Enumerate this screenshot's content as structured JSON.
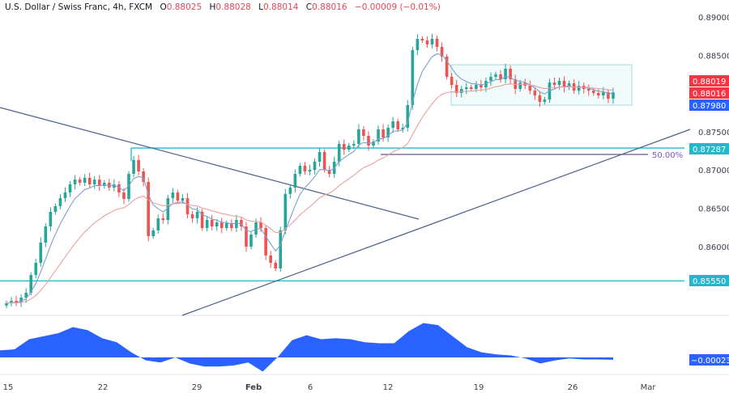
{
  "header": {
    "symbol": "U.S. Dollar / Swiss Franc, 4h, FXCM",
    "open_label": "O",
    "open": "0.88025",
    "high_label": "H",
    "high": "0.88028",
    "low_label": "L",
    "low": "0.88014",
    "close_label": "C",
    "close": "0.88016",
    "change": "−0.00009 (−0.01%)"
  },
  "colors": {
    "up": "#26a69a",
    "down": "#ef5350",
    "ma_fast": "#7e9fd0",
    "ma_slow": "#e8a0a0",
    "oscillator": "#2962ff",
    "level": "#26b6c9",
    "trendline": "#4a5f8a",
    "fib": "#7e57c2"
  },
  "price_tags": [
    {
      "value": "0.88019",
      "color": "#f23645"
    },
    {
      "value": "0.88016",
      "color": "#f23645"
    },
    {
      "value": "0.87980",
      "color": "#2962ff"
    },
    {
      "value": "0.87287",
      "color": "#26b6c9"
    },
    {
      "value": "0.85550",
      "color": "#26b6c9"
    }
  ],
  "oscillator_tag": {
    "value": "−0.00023",
    "color": "#2962ff"
  },
  "fib_label": "50.00%",
  "chart_data": {
    "type": "candlestick",
    "symbol": "USDCHF",
    "timeframe": "4h",
    "y_ticks": [
      "0.89000",
      "0.88500",
      "0.87500",
      "0.87000",
      "0.86500",
      "0.86000"
    ],
    "y_tick_values": [
      0.89,
      0.885,
      0.875,
      0.87,
      0.865,
      0.86
    ],
    "ylim": [
      0.8512,
      0.8922
    ],
    "x_ticks": [
      "15",
      "22",
      "29",
      "Feb",
      "6",
      "12",
      "19",
      "26",
      "Mar"
    ],
    "levels": {
      "resistance": 0.87287,
      "support": 0.8555,
      "fib_50": 0.87203,
      "range_top": 0.88376,
      "range_bottom": 0.87848
    },
    "closes": [
      0.85258,
      0.8529,
      0.85269,
      0.85332,
      0.85395,
      0.85628,
      0.85787,
      0.86051,
      0.86262,
      0.86453,
      0.86527,
      0.86632,
      0.86706,
      0.86812,
      0.86875,
      0.86833,
      0.86897,
      0.86812,
      0.86875,
      0.86791,
      0.86833,
      0.8677,
      0.86812,
      0.86706,
      0.86621,
      0.86949,
      0.87131,
      0.86981,
      0.86844,
      0.86135,
      0.8621,
      0.86368,
      0.86347,
      0.86632,
      0.86706,
      0.866,
      0.86632,
      0.86421,
      0.86368,
      0.86453,
      0.86241,
      0.86347,
      0.86262,
      0.86315,
      0.86241,
      0.86305,
      0.86241,
      0.86347,
      0.86262,
      0.85998,
      0.86156,
      0.86315,
      0.86241,
      0.85883,
      0.85787,
      0.85713,
      0.8621,
      0.86687,
      0.8677,
      0.86949,
      0.87055,
      0.86981,
      0.87002,
      0.87108,
      0.87235,
      0.87002,
      0.86949,
      0.87108,
      0.87341,
      0.87266,
      0.87319,
      0.87341,
      0.87531,
      0.87446,
      0.87319,
      0.87372,
      0.87531,
      0.87425,
      0.87552,
      0.87636,
      0.87531,
      0.87552,
      0.87848,
      0.88567,
      0.88715,
      0.88694,
      0.88641,
      0.88715,
      0.88609,
      0.88482,
      0.88218,
      0.88112,
      0.88006,
      0.88059,
      0.8808,
      0.88059,
      0.88112,
      0.8808,
      0.88165,
      0.88218,
      0.8825,
      0.88186,
      0.88323,
      0.88186,
      0.88059,
      0.88143,
      0.88101,
      0.88038,
      0.87975,
      0.87891,
      0.87921,
      0.88143,
      0.88112,
      0.88165,
      0.8808,
      0.88133,
      0.88038,
      0.88101,
      0.88059,
      0.88038,
      0.88006,
      0.87975,
      0.88016,
      0.87932,
      0.88016
    ],
    "oscillator": [
      0.0007,
      0.0008,
      0.0018,
      0.0021,
      0.0024,
      0.003,
      0.0027,
      0.0019,
      0.0015,
      0.0005,
      -0.0003,
      -0.0005,
      0,
      -0.0006,
      -0.0009,
      -0.0009,
      -0.0008,
      -0.0005,
      -0.0014,
      0,
      0.0017,
      0.0022,
      0.0018,
      0.0019,
      0.0018,
      0.0015,
      0.0014,
      0.0014,
      0.0026,
      0.0034,
      0.0032,
      0.0021,
      0.001,
      0.0005,
      0.0003,
      0.0002,
      -0.0001,
      -0.0006,
      -0.0003,
      -0.0001,
      -0.0002,
      -0.0002,
      -0.00023
    ]
  }
}
